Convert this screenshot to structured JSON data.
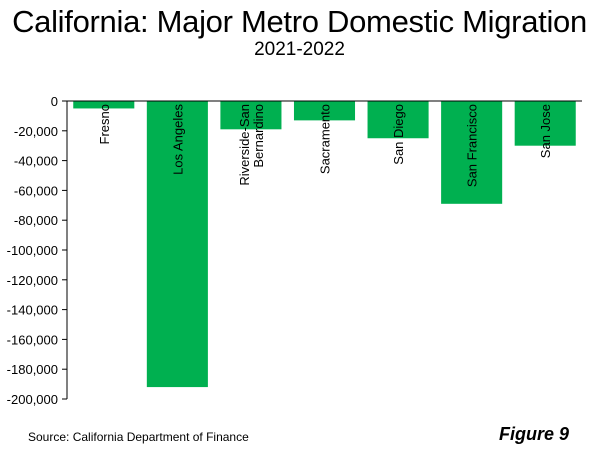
{
  "title": "California: Major Metro Domestic Migration",
  "subtitle": "2021-2022",
  "source": "Source: California Department of Finance",
  "figure_label": "Figure 9",
  "colors": {
    "bar": "#00b050",
    "axis": "#000000",
    "grid": "#d9d9d9"
  },
  "chart_data": {
    "type": "bar",
    "categories": [
      "Fresno",
      "Los Angeles",
      [
        "Riverside-San",
        "Bernardino"
      ],
      "Sacramento",
      "San Diego",
      "San Francisco",
      "San Jose"
    ],
    "values": [
      -5000,
      -192000,
      -19000,
      -13000,
      -25000,
      -69000,
      -30000
    ],
    "ylim": [
      -200000,
      0
    ],
    "yticks": [
      0,
      -20000,
      -40000,
      -60000,
      -80000,
      -100000,
      -120000,
      -140000,
      -160000,
      -180000,
      -200000
    ],
    "ytick_labels": [
      "0",
      "-20,000",
      "-40,000",
      "-60,000",
      "-80,000",
      "-100,000",
      "-120,000",
      "-140,000",
      "-160,000",
      "-180,000",
      "-200,000"
    ],
    "xlabel": "",
    "ylabel": "",
    "grid": false
  }
}
